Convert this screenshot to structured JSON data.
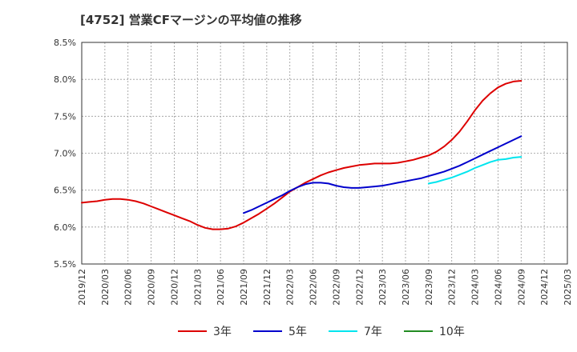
{
  "title": "[4752]  営業CFマージンの平均値の推移",
  "chart_data": {
    "type": "line",
    "title": "[4752]  営業CFマージンの平均値の推移",
    "xlabel": "",
    "ylabel": "",
    "ylim": [
      5.5,
      8.5
    ],
    "y_ticks": [
      "5.5%",
      "6.0%",
      "6.5%",
      "7.0%",
      "7.5%",
      "8.0%",
      "8.5%"
    ],
    "x_ticks": [
      "2019/12",
      "2020/03",
      "2020/06",
      "2020/09",
      "2020/12",
      "2021/03",
      "2021/06",
      "2021/09",
      "2021/12",
      "2022/03",
      "2022/06",
      "2022/09",
      "2022/12",
      "2023/03",
      "2023/06",
      "2023/09",
      "2023/12",
      "2024/03",
      "2024/06",
      "2024/09",
      "2024/12",
      "2025/03"
    ],
    "grid": true,
    "legend_position": "bottom",
    "series": [
      {
        "name": "3年",
        "color": "#dd0000",
        "x": [
          "2019/12",
          "2020/01",
          "2020/02",
          "2020/03",
          "2020/04",
          "2020/05",
          "2020/06",
          "2020/07",
          "2020/08",
          "2020/09",
          "2020/10",
          "2020/11",
          "2020/12",
          "2021/01",
          "2021/02",
          "2021/03",
          "2021/04",
          "2021/05",
          "2021/06",
          "2021/07",
          "2021/08",
          "2021/09",
          "2021/10",
          "2021/11",
          "2021/12",
          "2022/01",
          "2022/02",
          "2022/03",
          "2022/04",
          "2022/05",
          "2022/06",
          "2022/07",
          "2022/08",
          "2022/09",
          "2022/10",
          "2022/11",
          "2022/12",
          "2023/01",
          "2023/02",
          "2023/03",
          "2023/04",
          "2023/05",
          "2023/06",
          "2023/07",
          "2023/08",
          "2023/09",
          "2023/10",
          "2023/11",
          "2023/12",
          "2024/01",
          "2024/02",
          "2024/03",
          "2024/04",
          "2024/05",
          "2024/06",
          "2024/07",
          "2024/08",
          "2024/09"
        ],
        "values": [
          6.33,
          6.34,
          6.35,
          6.37,
          6.38,
          6.38,
          6.37,
          6.35,
          6.32,
          6.28,
          6.24,
          6.2,
          6.16,
          6.12,
          6.08,
          6.03,
          5.99,
          5.97,
          5.97,
          5.98,
          6.01,
          6.06,
          6.12,
          6.18,
          6.25,
          6.32,
          6.4,
          6.48,
          6.54,
          6.6,
          6.65,
          6.7,
          6.74,
          6.77,
          6.8,
          6.82,
          6.84,
          6.85,
          6.86,
          6.86,
          6.86,
          6.87,
          6.89,
          6.91,
          6.94,
          6.97,
          7.02,
          7.09,
          7.18,
          7.29,
          7.43,
          7.58,
          7.71,
          7.81,
          7.89,
          7.94,
          7.97,
          7.98
        ]
      },
      {
        "name": "5年",
        "color": "#0000cc",
        "x": [
          "2021/09",
          "2021/10",
          "2021/11",
          "2021/12",
          "2022/01",
          "2022/02",
          "2022/03",
          "2022/04",
          "2022/05",
          "2022/06",
          "2022/07",
          "2022/08",
          "2022/09",
          "2022/10",
          "2022/11",
          "2022/12",
          "2023/01",
          "2023/02",
          "2023/03",
          "2023/04",
          "2023/05",
          "2023/06",
          "2023/07",
          "2023/08",
          "2023/09",
          "2023/10",
          "2023/11",
          "2023/12",
          "2024/01",
          "2024/02",
          "2024/03",
          "2024/04",
          "2024/05",
          "2024/06",
          "2024/07",
          "2024/08",
          "2024/09"
        ],
        "values": [
          6.19,
          6.23,
          6.28,
          6.33,
          6.38,
          6.43,
          6.49,
          6.54,
          6.58,
          6.6,
          6.6,
          6.59,
          6.56,
          6.54,
          6.53,
          6.53,
          6.54,
          6.55,
          6.56,
          6.58,
          6.6,
          6.62,
          6.64,
          6.66,
          6.69,
          6.72,
          6.75,
          6.79,
          6.83,
          6.88,
          6.93,
          6.98,
          7.03,
          7.08,
          7.13,
          7.18,
          7.23
        ]
      },
      {
        "name": "7年",
        "color": "#00e5ee",
        "x": [
          "2023/09",
          "2023/10",
          "2023/11",
          "2023/12",
          "2024/01",
          "2024/02",
          "2024/03",
          "2024/04",
          "2024/05",
          "2024/06",
          "2024/07",
          "2024/08",
          "2024/09"
        ],
        "values": [
          6.59,
          6.61,
          6.64,
          6.67,
          6.71,
          6.75,
          6.8,
          6.84,
          6.88,
          6.91,
          6.92,
          6.94,
          6.95
        ]
      },
      {
        "name": "10年",
        "color": "#228b22",
        "x": [],
        "values": []
      }
    ]
  }
}
